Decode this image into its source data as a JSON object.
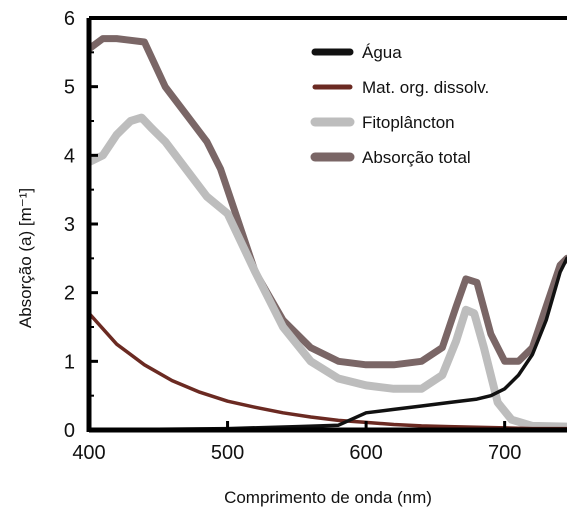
{
  "chart_data": {
    "type": "line",
    "title": "",
    "xlabel": "Comprimento de onda (nm)",
    "ylabel": "Absorção (a) [m⁻¹]",
    "xlim": [
      400,
      745
    ],
    "ylim": [
      0,
      6
    ],
    "xticks": [
      400,
      500,
      600,
      700
    ],
    "yticks": [
      0,
      1,
      2,
      3,
      4,
      5,
      6
    ],
    "grid": false,
    "legend_position": "top-right",
    "series": [
      {
        "name": "Água",
        "color": "#111111",
        "x": [
          400,
          450,
          500,
          550,
          580,
          600,
          620,
          640,
          660,
          680,
          690,
          700,
          710,
          720,
          730,
          740,
          745
        ],
        "y": [
          0.01,
          0.01,
          0.02,
          0.05,
          0.07,
          0.25,
          0.3,
          0.35,
          0.4,
          0.45,
          0.5,
          0.6,
          0.8,
          1.1,
          1.6,
          2.3,
          2.5
        ]
      },
      {
        "name": "Mat. org. dissolv.",
        "color": "#6b2a22",
        "x": [
          400,
          420,
          440,
          460,
          480,
          500,
          520,
          540,
          560,
          580,
          600,
          620,
          640,
          660,
          680,
          700,
          720,
          745
        ],
        "y": [
          1.7,
          1.25,
          0.95,
          0.72,
          0.55,
          0.42,
          0.33,
          0.25,
          0.19,
          0.14,
          0.11,
          0.08,
          0.06,
          0.05,
          0.04,
          0.03,
          0.02,
          0.02
        ]
      },
      {
        "name": "Fitoplâncton",
        "color": "#bdbdbd",
        "x": [
          400,
          410,
          420,
          430,
          438,
          445,
          455,
          470,
          485,
          500,
          520,
          540,
          560,
          580,
          600,
          620,
          640,
          655,
          665,
          672,
          678,
          685,
          695,
          705,
          720,
          745
        ],
        "y": [
          3.9,
          4.0,
          4.3,
          4.5,
          4.55,
          4.4,
          4.2,
          3.8,
          3.4,
          3.15,
          2.3,
          1.5,
          1.0,
          0.75,
          0.65,
          0.6,
          0.6,
          0.8,
          1.3,
          1.75,
          1.7,
          1.2,
          0.4,
          0.15,
          0.06,
          0.05
        ]
      },
      {
        "name": "Absorção total",
        "color": "#7a6666",
        "x": [
          400,
          410,
          420,
          440,
          455,
          470,
          485,
          495,
          505,
          520,
          540,
          560,
          580,
          600,
          620,
          640,
          655,
          665,
          672,
          680,
          690,
          700,
          710,
          720,
          730,
          740,
          745
        ],
        "y": [
          5.55,
          5.7,
          5.7,
          5.65,
          5.0,
          4.6,
          4.2,
          3.8,
          3.2,
          2.3,
          1.6,
          1.2,
          1.0,
          0.95,
          0.95,
          1.0,
          1.2,
          1.8,
          2.2,
          2.15,
          1.4,
          1.0,
          1.0,
          1.2,
          1.8,
          2.4,
          2.5
        ]
      }
    ]
  }
}
